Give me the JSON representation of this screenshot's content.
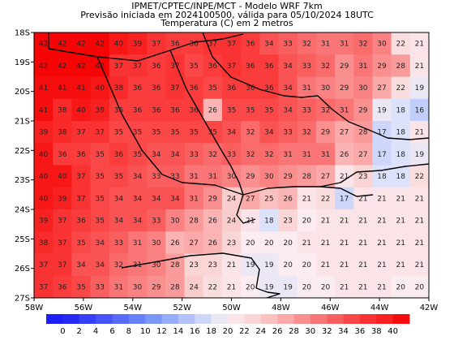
{
  "header": {
    "line1": "IPMET/CPTEC/INPE/MCT - Modelo WRF 7km",
    "line2": "Previsão iniciada em 2024100500, válida para 05/10/2024 18UTC",
    "line3": "Temperatura (C) em 2 metros"
  },
  "map": {
    "lat_labels": [
      "18S",
      "19S",
      "20S",
      "21S",
      "22S",
      "23S",
      "24S",
      "25S",
      "26S",
      "27S"
    ],
    "lon_labels": [
      "58W",
      "56W",
      "54W",
      "52W",
      "50W",
      "48W",
      "46W",
      "44W",
      "42W"
    ],
    "grid_values": [
      [
        42,
        42,
        42,
        42,
        40,
        39,
        37,
        36,
        36,
        37,
        37,
        36,
        34,
        33,
        32,
        31,
        31,
        32,
        30,
        22,
        21
      ],
      [
        42,
        42,
        42,
        42,
        37,
        37,
        36,
        37,
        35,
        36,
        37,
        36,
        36,
        34,
        33,
        32,
        29,
        31,
        29,
        28,
        21
      ],
      [
        41,
        41,
        41,
        40,
        38,
        36,
        36,
        37,
        36,
        35,
        36,
        36,
        36,
        34,
        31,
        30,
        29,
        30,
        27,
        22,
        19
      ],
      [
        41,
        38,
        40,
        39,
        36,
        36,
        36,
        36,
        36,
        26,
        35,
        35,
        35,
        34,
        33,
        32,
        31,
        29,
        19,
        18,
        16
      ],
      [
        39,
        38,
        37,
        37,
        35,
        35,
        35,
        35,
        35,
        35,
        34,
        32,
        34,
        33,
        32,
        29,
        27,
        28,
        17,
        18,
        21
      ],
      [
        40,
        36,
        36,
        35,
        36,
        35,
        34,
        34,
        33,
        32,
        33,
        32,
        32,
        31,
        31,
        31,
        26,
        27,
        17,
        18,
        19
      ],
      [
        40,
        40,
        37,
        35,
        35,
        34,
        33,
        33,
        31,
        31,
        30,
        29,
        30,
        29,
        28,
        27,
        21,
        23,
        18,
        18,
        22
      ],
      [
        40,
        39,
        37,
        35,
        34,
        34,
        34,
        34,
        31,
        29,
        24,
        27,
        25,
        26,
        21,
        22,
        17,
        21,
        21,
        21,
        21
      ],
      [
        39,
        37,
        36,
        35,
        34,
        34,
        33,
        30,
        28,
        26,
        24,
        21,
        18,
        23,
        20,
        21,
        21,
        21,
        21,
        21,
        21
      ],
      [
        38,
        37,
        35,
        34,
        33,
        31,
        30,
        26,
        27,
        26,
        23,
        20,
        20,
        20,
        21,
        21,
        21,
        21,
        21,
        21,
        21
      ],
      [
        37,
        37,
        34,
        34,
        32,
        31,
        30,
        28,
        23,
        23,
        21,
        19,
        19,
        20,
        20,
        21,
        21,
        21,
        21,
        21,
        21
      ],
      [
        37,
        36,
        35,
        33,
        31,
        30,
        29,
        28,
        24,
        22,
        21,
        20,
        19,
        19,
        20,
        20,
        21,
        21,
        21,
        20,
        20
      ]
    ],
    "colorbar_values": [
      "0",
      "2",
      "4",
      "6",
      "8",
      "10",
      "12",
      "14",
      "16",
      "18",
      "20",
      "22",
      "24",
      "26",
      "28",
      "30",
      "32",
      "34",
      "36",
      "38",
      "40"
    ]
  }
}
